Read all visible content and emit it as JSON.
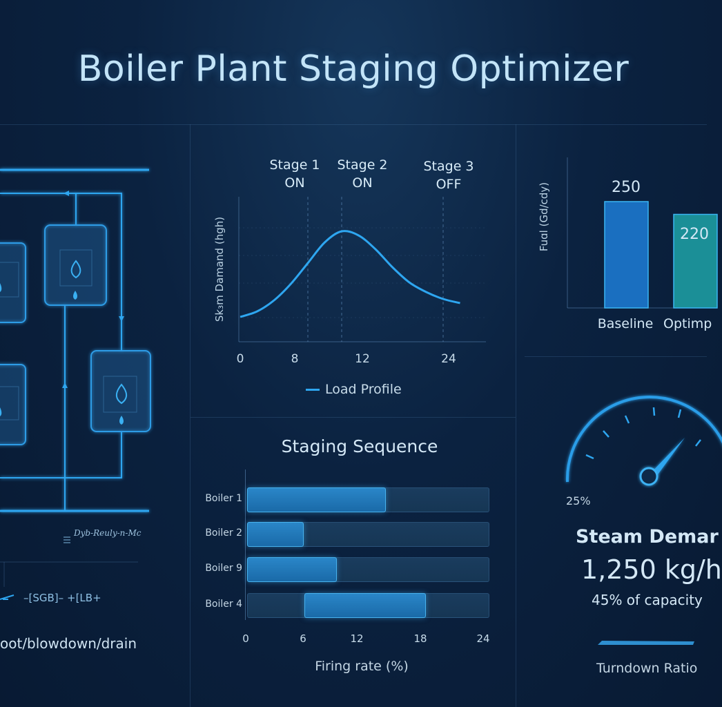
{
  "title": "Boiler Plant Staging Optimizer",
  "colors": {
    "accent": "#2ea6f0",
    "background": "#0b2240",
    "teal": "#1b8f97",
    "barBlue": "#1a6fc0"
  },
  "schematic": {
    "note": "Dyb-Reuly-n-Mc",
    "legend_codes": [
      "SGB",
      "LB+"
    ],
    "footer": "oot/blowdown/drain"
  },
  "load_chart": {
    "ylabel": "Sk₃m Damand (hgh)",
    "stages": [
      {
        "label": "Stage 1",
        "state": "ON"
      },
      {
        "label": "Stage 2",
        "state": "ON"
      },
      {
        "label": "Stage 3",
        "state": "OFF"
      }
    ],
    "x_ticks": [
      "0",
      "8",
      "12",
      "24"
    ],
    "legend": "Load Profile"
  },
  "fuel_chart": {
    "ylabel": "Fuɑl (Gd/cdy)",
    "categories": [
      "Baseline",
      "Optimp"
    ],
    "values": [
      250,
      220
    ]
  },
  "staging": {
    "title": "Staging Sequence",
    "xlabel": "Firing rate (%)",
    "x_ticks": [
      "0",
      "6",
      "12",
      "18",
      "24"
    ],
    "boilers": [
      {
        "name": "Boiler 1",
        "start": 0,
        "end": 13.7
      },
      {
        "name": "Boiler 2",
        "start": 0,
        "end": 5.5
      },
      {
        "name": "Boiler 9",
        "start": 0,
        "end": 8.8
      },
      {
        "name": "Boiler 4",
        "start": 5.7,
        "end": 17.7
      }
    ]
  },
  "gauge": {
    "min_label": "25%",
    "title": "Steam Demar",
    "value": "1,250 kg/h",
    "sub": "45% of capacity",
    "footer": "Turndown Ratio"
  },
  "chart_data": [
    {
      "type": "line",
      "title": "",
      "xlabel": "",
      "ylabel": "Sk₃m Damand (hgh)",
      "x": [
        0,
        2,
        4,
        6,
        8,
        10,
        12,
        14,
        16,
        18,
        20,
        22,
        24,
        26
      ],
      "series": [
        {
          "name": "Load Profile",
          "values": [
            0.18,
            0.22,
            0.3,
            0.42,
            0.57,
            0.72,
            0.8,
            0.77,
            0.67,
            0.54,
            0.43,
            0.36,
            0.31,
            0.28
          ]
        }
      ],
      "xlim": [
        0,
        28
      ],
      "ylim": [
        0,
        1
      ],
      "markers": [
        {
          "x": 8,
          "label": "Stage 1 ON"
        },
        {
          "x": 12,
          "label": "Stage 2 ON"
        },
        {
          "x": 24,
          "label": "Stage 3 OFF"
        }
      ]
    },
    {
      "type": "bar",
      "title": "",
      "xlabel": "",
      "ylabel": "Fuɑl (Gd/cdy)",
      "categories": [
        "Baseline",
        "Optimp"
      ],
      "values": [
        250,
        220
      ],
      "ylim": [
        0,
        280
      ]
    },
    {
      "type": "bar",
      "title": "Staging Sequence",
      "xlabel": "Firing rate (%)",
      "ylabel": "",
      "categories": [
        "Boiler 1",
        "Boiler 2",
        "Boiler 9",
        "Boiler 4"
      ],
      "series": [
        {
          "name": "",
          "ranges": [
            [
              0,
              13.7
            ],
            [
              0,
              5.5
            ],
            [
              0,
              8.8
            ],
            [
              5.7,
              17.7
            ]
          ]
        }
      ],
      "xlim": [
        0,
        24
      ]
    }
  ]
}
